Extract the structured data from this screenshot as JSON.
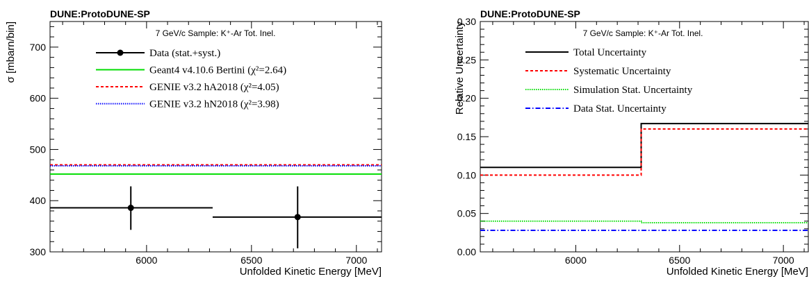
{
  "chart_data": [
    {
      "type": "line",
      "title": "DUNE:ProtoDUNE-SP",
      "subtitle": "7 GeV/c Sample: K⁺-Ar Tot. Inel.",
      "xlabel": "Unfolded Kinetic Energy [MeV]",
      "ylabel": "σ [mbarn/bin]",
      "xlim": [
        5540,
        7120
      ],
      "ylim": [
        300,
        750
      ],
      "xticks": [
        "6000",
        "6500",
        "7000"
      ],
      "yticks": [
        "300",
        "400",
        "500",
        "600",
        "700"
      ],
      "legend_position": "top",
      "data": {
        "name": "Data (stat.+syst.)",
        "color": "#000000",
        "points": [
          {
            "x": 5925,
            "y": 386,
            "xlo": 5540,
            "xhi": 6315,
            "ylo": 343,
            "yhi": 428
          },
          {
            "x": 6720,
            "y": 368,
            "xlo": 6315,
            "xhi": 7120,
            "ylo": 307,
            "yhi": 428
          }
        ]
      },
      "series": [
        {
          "name": "Geant4 v4.10.6 Bertini (χ²=2.64)",
          "color": "#00dd00",
          "style": "solid",
          "edges": [
            5540,
            6315,
            7120
          ],
          "values": [
            452,
            452
          ]
        },
        {
          "name": "GENIE v3.2 hA2018 (χ²=4.05)",
          "color": "#ff0000",
          "style": "dashed",
          "edges": [
            5540,
            6315,
            7120
          ],
          "values": [
            470,
            470
          ]
        },
        {
          "name": "GENIE v3.2 hN2018 (χ²=3.98)",
          "color": "#0000ff",
          "style": "dotted",
          "edges": [
            5540,
            6315,
            7120
          ],
          "values": [
            468,
            468
          ]
        }
      ]
    },
    {
      "type": "line",
      "title": "DUNE:ProtoDUNE-SP",
      "subtitle": "7 GeV/c Sample: K⁺-Ar Tot. Inel.",
      "xlabel": "Unfolded Kinetic Energy [MeV]",
      "ylabel": "Relative Uncertainty",
      "xlim": [
        5540,
        7120
      ],
      "ylim": [
        0,
        0.3
      ],
      "xticks": [
        "6000",
        "6500",
        "7000"
      ],
      "yticks": [
        "0.00",
        "0.05",
        "0.10",
        "0.15",
        "0.20",
        "0.25",
        "0.30"
      ],
      "legend_position": "top",
      "series": [
        {
          "name": "Total Uncertainty",
          "color": "#000000",
          "style": "solid",
          "edges": [
            5540,
            6315,
            7120
          ],
          "values": [
            0.11,
            0.167
          ]
        },
        {
          "name": "Systematic Uncertainty",
          "color": "#ff0000",
          "style": "dashed",
          "edges": [
            5540,
            6315,
            7120
          ],
          "values": [
            0.1,
            0.16
          ]
        },
        {
          "name": "Simulation Stat. Uncertainty",
          "color": "#00dd00",
          "style": "dotted",
          "edges": [
            5540,
            6315,
            7120
          ],
          "values": [
            0.04,
            0.038
          ]
        },
        {
          "name": "Data Stat. Uncertainty",
          "color": "#0000ff",
          "style": "dashdot",
          "edges": [
            5540,
            6315,
            7120
          ],
          "values": [
            0.028,
            0.028
          ]
        }
      ]
    }
  ]
}
